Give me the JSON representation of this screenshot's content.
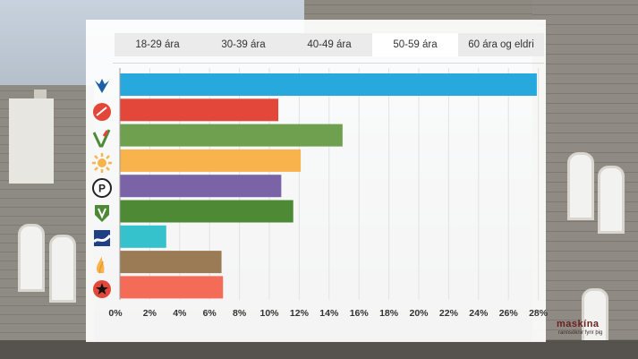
{
  "tabs": [
    {
      "label": "18-29 ára",
      "active": false
    },
    {
      "label": "30-39 ára",
      "active": false
    },
    {
      "label": "40-49 ára",
      "active": false
    },
    {
      "label": "50-59 ára",
      "active": true
    },
    {
      "label": "60 ára og eldri",
      "active": false
    }
  ],
  "chart_data": {
    "type": "bar",
    "orientation": "horizontal",
    "categories": [
      "falcon",
      "rose",
      "v-check",
      "sun",
      "pirate-p",
      "shield-v",
      "wave-flag",
      "flame",
      "star"
    ],
    "values": [
      27.9,
      10.6,
      14.9,
      12.1,
      10.8,
      11.6,
      3.1,
      6.8,
      6.9
    ],
    "colors": [
      "#28a9de",
      "#e2473a",
      "#6fa04f",
      "#f8b34d",
      "#7b63a8",
      "#4e8a36",
      "#35c2cc",
      "#9b7b56",
      "#f46c58"
    ],
    "xlim": [
      0,
      28
    ],
    "xticks": [
      "0%",
      "2%",
      "4%",
      "6%",
      "8%",
      "10%",
      "12%",
      "14%",
      "16%",
      "18%",
      "20%",
      "22%",
      "24%",
      "26%",
      "28%"
    ],
    "grid": true,
    "title": "",
    "xlabel": "",
    "ylabel": ""
  },
  "icons": [
    "falcon-icon",
    "rose-icon",
    "v-check-icon",
    "sun-icon",
    "pirate-p-icon",
    "shield-v-icon",
    "wave-flag-icon",
    "flame-icon",
    "star-icon"
  ],
  "watermark": {
    "brand": "maskína",
    "tagline": "rannsóknir fyrir þig"
  }
}
